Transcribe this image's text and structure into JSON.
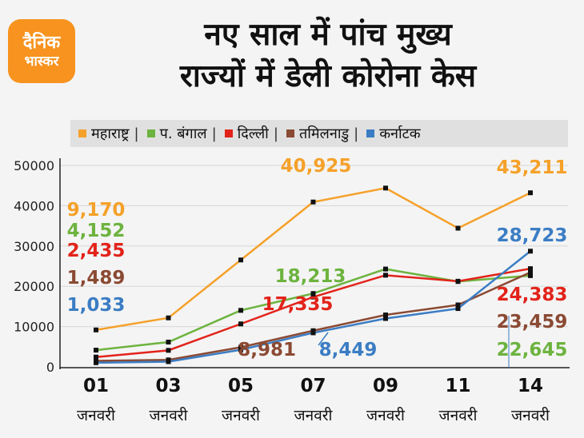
{
  "logo": {
    "line1": "दैनिक",
    "line2": "भास्कर"
  },
  "title": {
    "line1": "नए साल में पांच मुख्य",
    "line2": "राज्यों में डेली कोरोना केस"
  },
  "colors": {
    "maharashtra": "#f5a12a",
    "wb": "#6db33f",
    "delhi": "#e2231a",
    "tn": "#8b4a33",
    "karnataka": "#3b7dc4"
  },
  "chart_data": {
    "type": "line",
    "categories": [
      {
        "day": "01",
        "month": "जनवरी"
      },
      {
        "day": "03",
        "month": "जनवरी"
      },
      {
        "day": "05",
        "month": "जनवरी"
      },
      {
        "day": "07",
        "month": "जनवरी"
      },
      {
        "day": "09",
        "month": "जनवरी"
      },
      {
        "day": "11",
        "month": "जनवरी"
      },
      {
        "day": "14",
        "month": "जनवरी"
      }
    ],
    "yticks": [
      "0",
      "10000",
      "20000",
      "30000",
      "40000",
      "50000"
    ],
    "ylim": [
      0,
      50000
    ],
    "series": [
      {
        "key": "maharashtra",
        "name": "महाराष्ट्र",
        "color": "#f5a12a",
        "values": [
          9170,
          12160,
          26538,
          40925,
          44388,
          34424,
          43211
        ]
      },
      {
        "key": "wb",
        "name": "प. बंगाल",
        "color": "#6db33f",
        "values": [
          4152,
          6153,
          14022,
          18213,
          24287,
          21190,
          22645
        ]
      },
      {
        "key": "delhi",
        "name": "दिल्ली",
        "color": "#e2231a",
        "values": [
          2435,
          4099,
          10665,
          17335,
          22751,
          21259,
          24383
        ]
      },
      {
        "key": "tn",
        "name": "तमिलनाडु",
        "color": "#8b4a33",
        "values": [
          1489,
          1728,
          4862,
          8981,
          12895,
          15379,
          23459
        ]
      },
      {
        "key": "karnataka",
        "name": "कर्नाटक",
        "color": "#3b7dc4",
        "values": [
          1033,
          1290,
          4246,
          8449,
          12000,
          14473,
          28723
        ]
      }
    ],
    "labels": [
      {
        "series": "maharashtra",
        "text": "9,170"
      },
      {
        "series": "wb",
        "text": "4,152"
      },
      {
        "series": "delhi",
        "text": "2,435"
      },
      {
        "series": "tn",
        "text": "1,489"
      },
      {
        "series": "karnataka",
        "text": "1,033"
      },
      {
        "series": "maharashtra",
        "text": "40,925"
      },
      {
        "series": "wb",
        "text": "18,213"
      },
      {
        "series": "delhi",
        "text": "17,335"
      },
      {
        "series": "tn",
        "text": "8,981"
      },
      {
        "series": "karnataka",
        "text": "8,449"
      },
      {
        "series": "maharashtra",
        "text": "43,211"
      },
      {
        "series": "karnataka",
        "text": "28,723"
      },
      {
        "series": "delhi",
        "text": "24,383"
      },
      {
        "series": "tn",
        "text": "23,459"
      },
      {
        "series": "wb",
        "text": "22,645"
      }
    ]
  }
}
